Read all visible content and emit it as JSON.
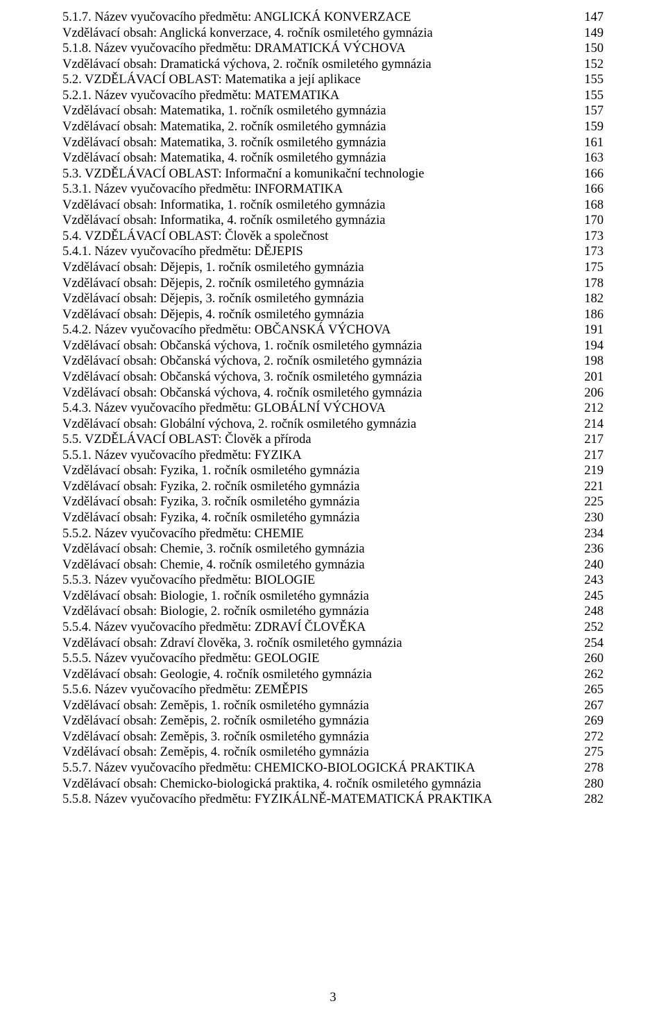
{
  "page_number": "3",
  "toc": [
    {
      "text": "5.1.7. Název vyučovacího předmětu: ANGLICKÁ KONVERZACE",
      "page": "147"
    },
    {
      "text": "Vzdělávací obsah: Anglická konverzace, 4. ročník osmiletého gymnázia",
      "page": "149"
    },
    {
      "text": "5.1.8. Název vyučovacího předmětu: DRAMATICKÁ VÝCHOVA",
      "page": "150"
    },
    {
      "text": "Vzdělávací obsah: Dramatická výchova, 2. ročník osmiletého gymnázia",
      "page": "152"
    },
    {
      "text": "5.2. VZDĚLÁVACÍ OBLAST: Matematika a její aplikace",
      "page": "155"
    },
    {
      "text": "5.2.1. Název vyučovacího předmětu: MATEMATIKA",
      "page": "155"
    },
    {
      "text": "Vzdělávací obsah: Matematika, 1. ročník osmiletého gymnázia",
      "page": "157"
    },
    {
      "text": "Vzdělávací obsah: Matematika, 2. ročník osmiletého gymnázia",
      "page": "159"
    },
    {
      "text": "Vzdělávací obsah: Matematika, 3. ročník osmiletého gymnázia",
      "page": "161"
    },
    {
      "text": "Vzdělávací obsah: Matematika, 4. ročník osmiletého gymnázia",
      "page": "163"
    },
    {
      "text": "5.3. VZDĚLÁVACÍ OBLAST: Informační a komunikační technologie",
      "page": "166"
    },
    {
      "text": "5.3.1. Název vyučovacího předmětu: INFORMATIKA",
      "page": "166"
    },
    {
      "text": "Vzdělávací obsah: Informatika, 1. ročník osmiletého gymnázia",
      "page": "168"
    },
    {
      "text": "Vzdělávací obsah: Informatika, 4. ročník osmiletého gymnázia",
      "page": "170"
    },
    {
      "text": "5.4. VZDĚLÁVACÍ OBLAST: Člověk a společnost",
      "page": "173"
    },
    {
      "text": "5.4.1. Název vyučovacího předmětu: DĚJEPIS",
      "page": "173"
    },
    {
      "text": "Vzdělávací obsah: Dějepis, 1. ročník osmiletého gymnázia",
      "page": "175"
    },
    {
      "text": "Vzdělávací obsah: Dějepis, 2. ročník osmiletého gymnázia",
      "page": "178"
    },
    {
      "text": "Vzdělávací obsah: Dějepis, 3. ročník osmiletého gymnázia",
      "page": "182"
    },
    {
      "text": "Vzdělávací obsah: Dějepis, 4. ročník osmiletého gymnázia",
      "page": "186"
    },
    {
      "text": "5.4.2. Název vyučovacího předmětu: OBČANSKÁ VÝCHOVA",
      "page": "191"
    },
    {
      "text": "Vzdělávací obsah: Občanská výchova, 1. ročník osmiletého gymnázia",
      "page": "194"
    },
    {
      "text": "Vzdělávací obsah: Občanská výchova, 2. ročník osmiletého gymnázia",
      "page": "198"
    },
    {
      "text": "Vzdělávací obsah: Občanská výchova, 3. ročník osmiletého gymnázia",
      "page": "201"
    },
    {
      "text": "Vzdělávací obsah: Občanská výchova, 4. ročník osmiletého gymnázia",
      "page": "206"
    },
    {
      "text": "5.4.3. Název vyučovacího předmětu: GLOBÁLNÍ VÝCHOVA",
      "page": "212"
    },
    {
      "text": "Vzdělávací obsah: Globální výchova, 2. ročník osmiletého gymnázia",
      "page": "214"
    },
    {
      "text": "5.5. VZDĚLÁVACÍ OBLAST: Člověk a příroda",
      "page": "217"
    },
    {
      "text": "5.5.1. Název vyučovacího předmětu: FYZIKA",
      "page": "217"
    },
    {
      "text": "Vzdělávací obsah: Fyzika, 1. ročník osmiletého gymnázia",
      "page": "219"
    },
    {
      "text": "Vzdělávací obsah: Fyzika, 2. ročník osmiletého gymnázia",
      "page": "221"
    },
    {
      "text": "Vzdělávací obsah: Fyzika, 3. ročník osmiletého gymnázia",
      "page": "225"
    },
    {
      "text": "Vzdělávací obsah: Fyzika, 4. ročník osmiletého gymnázia",
      "page": "230"
    },
    {
      "text": "5.5.2. Název vyučovacího předmětu: CHEMIE",
      "page": "234"
    },
    {
      "text": "Vzdělávací obsah: Chemie, 3. ročník osmiletého gymnázia",
      "page": "236"
    },
    {
      "text": "Vzdělávací obsah: Chemie, 4. ročník osmiletého gymnázia",
      "page": "240"
    },
    {
      "text": "5.5.3. Název vyučovacího předmětu: BIOLOGIE",
      "page": "243"
    },
    {
      "text": "Vzdělávací obsah: Biologie, 1. ročník osmiletého gymnázia",
      "page": "245"
    },
    {
      "text": "Vzdělávací obsah: Biologie, 2. ročník osmiletého gymnázia",
      "page": "248"
    },
    {
      "text": "5.5.4. Název vyučovacího předmětu: ZDRAVÍ ČLOVĚKA",
      "page": "252"
    },
    {
      "text": "Vzdělávací obsah: Zdraví člověka, 3. ročník osmiletého gymnázia",
      "page": "254"
    },
    {
      "text": "5.5.5. Název vyučovacího předmětu: GEOLOGIE",
      "page": "260"
    },
    {
      "text": "Vzdělávací obsah: Geologie, 4. ročník osmiletého gymnázia",
      "page": "262"
    },
    {
      "text": "5.5.6. Název vyučovacího předmětu: ZEMĚPIS",
      "page": "265"
    },
    {
      "text": "Vzdělávací obsah: Zeměpis, 1. ročník osmiletého gymnázia",
      "page": "267"
    },
    {
      "text": "Vzdělávací obsah: Zeměpis, 2. ročník osmiletého gymnázia",
      "page": "269"
    },
    {
      "text": "Vzdělávací obsah: Zeměpis, 3. ročník osmiletého gymnázia",
      "page": "272"
    },
    {
      "text": "Vzdělávací obsah: Zeměpis, 4. ročník osmiletého gymnázia",
      "page": "275"
    },
    {
      "text": "5.5.7. Název vyučovacího předmětu: CHEMICKO-BIOLOGICKÁ PRAKTIKA",
      "page": "278"
    },
    {
      "text": "Vzdělávací obsah: Chemicko-biologická praktika, 4. ročník osmiletého gymnázia",
      "page": "280"
    },
    {
      "text": "5.5.8. Název vyučovacího předmětu: FYZIKÁLNĚ-MATEMATICKÁ PRAKTIKA",
      "page": "282"
    }
  ]
}
